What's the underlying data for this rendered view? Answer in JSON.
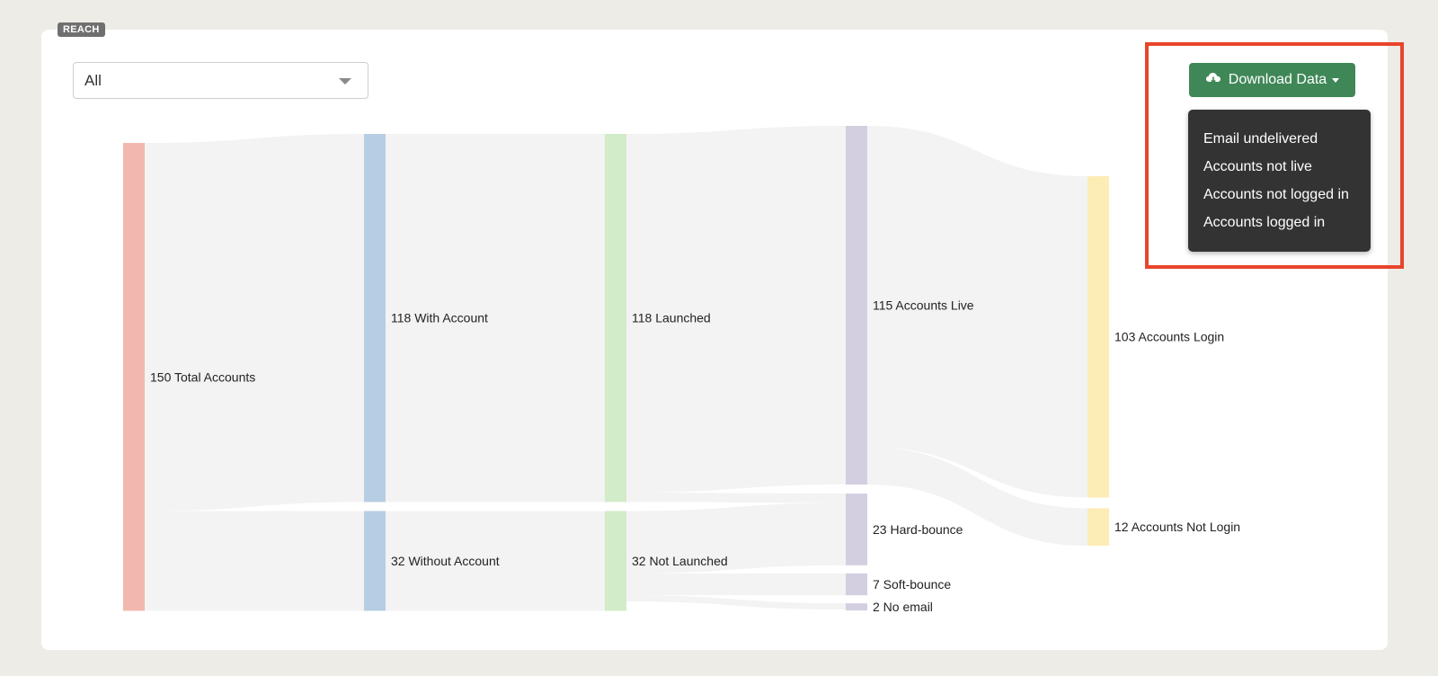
{
  "badge": {
    "label": "REACH"
  },
  "filter": {
    "selected": "All"
  },
  "download": {
    "label": "Download Data",
    "icon": "cloud-download-icon",
    "menu": [
      "Email undelivered",
      "Accounts not live",
      "Accounts not logged in",
      "Accounts logged in"
    ]
  },
  "colors": {
    "total": "#f2b8b0",
    "account": "#b7cde3",
    "launched": "#d2ebc9",
    "email": "#d3cfe0",
    "login": "#fcecb5",
    "link": "#f3f3f3",
    "button": "#3f8757",
    "menu": "#333333",
    "highlight": "#e8452c"
  },
  "chart_data": {
    "type": "sankey",
    "nodes": [
      {
        "id": "total",
        "label": "150 Total Accounts",
        "value": 150,
        "column": 0
      },
      {
        "id": "with",
        "label": "118 With Account",
        "value": 118,
        "column": 1
      },
      {
        "id": "without",
        "label": "32 Without Account",
        "value": 32,
        "column": 1
      },
      {
        "id": "launched",
        "label": "118 Launched",
        "value": 118,
        "column": 2
      },
      {
        "id": "notlaunched",
        "label": "32 Not Launched",
        "value": 32,
        "column": 2
      },
      {
        "id": "live",
        "label": "115 Accounts Live",
        "value": 115,
        "column": 3
      },
      {
        "id": "hard",
        "label": "23 Hard-bounce",
        "value": 23,
        "column": 3
      },
      {
        "id": "soft",
        "label": "7 Soft-bounce",
        "value": 7,
        "column": 3
      },
      {
        "id": "noemail",
        "label": "2 No email",
        "value": 2,
        "column": 3
      },
      {
        "id": "login",
        "label": "103 Accounts Login",
        "value": 103,
        "column": 4
      },
      {
        "id": "notlogin",
        "label": "12 Accounts Not Login",
        "value": 12,
        "column": 4
      }
    ],
    "links": [
      {
        "source": "total",
        "target": "with",
        "value": 118
      },
      {
        "source": "total",
        "target": "without",
        "value": 32
      },
      {
        "source": "with",
        "target": "launched",
        "value": 118
      },
      {
        "source": "without",
        "target": "notlaunched",
        "value": 32
      },
      {
        "source": "launched",
        "target": "live",
        "value": 115
      },
      {
        "source": "launched",
        "target": "hard",
        "value": 3
      },
      {
        "source": "notlaunched",
        "target": "hard",
        "value": 20
      },
      {
        "source": "notlaunched",
        "target": "soft",
        "value": 7
      },
      {
        "source": "notlaunched",
        "target": "noemail",
        "value": 2
      },
      {
        "source": "live",
        "target": "login",
        "value": 103
      },
      {
        "source": "live",
        "target": "notlogin",
        "value": 12
      }
    ]
  }
}
